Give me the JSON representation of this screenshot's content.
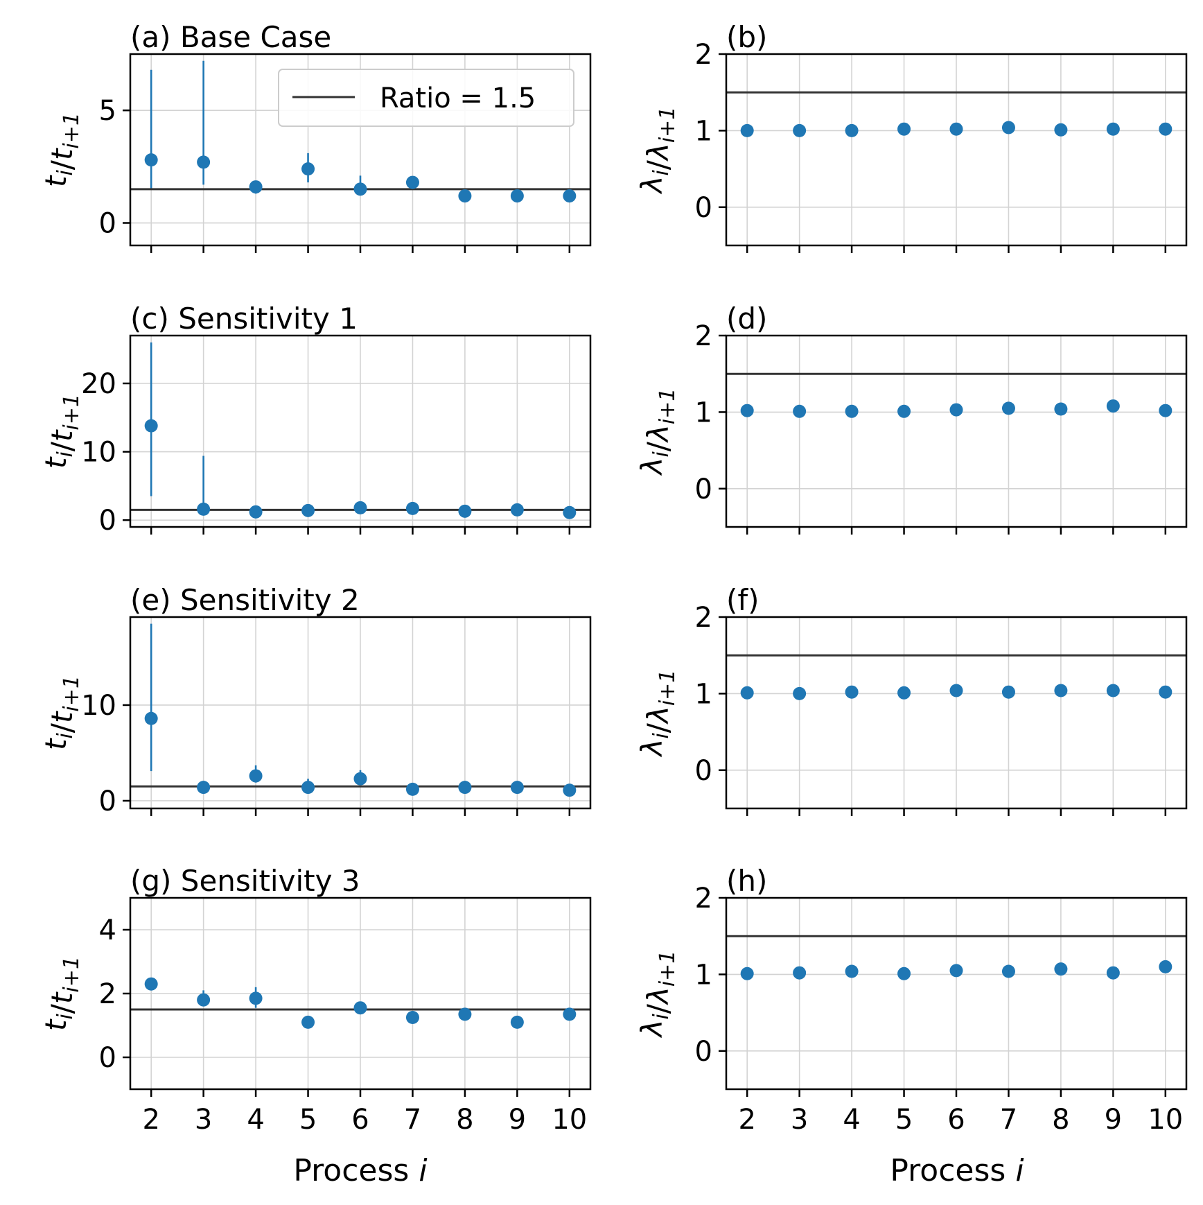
{
  "figure": {
    "xlabel": "Process",
    "xlabel_var": "i",
    "legend_label": "Ratio = 1.5",
    "reference_ratio": 1.5,
    "marker_color": "#1f77b4",
    "line_color": "#333333",
    "grid_color": "#d3d3d3"
  },
  "chart_data": [
    {
      "panel": "a",
      "title": "(a) Base Case",
      "type": "scatter",
      "column": "left",
      "row": 0,
      "ylabel": "t_i/t_{i+1}",
      "ylim": [
        -1,
        7.5
      ],
      "yticks": [
        0,
        5
      ],
      "x": [
        2,
        3,
        4,
        5,
        6,
        7,
        8,
        9,
        10
      ],
      "y": [
        2.8,
        2.7,
        1.6,
        2.4,
        1.5,
        1.8,
        1.2,
        1.2,
        1.2
      ],
      "err_low": [
        1.5,
        1.7,
        1.3,
        1.8,
        1.3,
        1.7,
        1.2,
        1.2,
        1.2
      ],
      "err_high": [
        6.8,
        7.2,
        1.7,
        3.1,
        2.1,
        1.8,
        1.2,
        1.2,
        1.2
      ],
      "hline": 1.5,
      "legend": "upper right",
      "grid": true
    },
    {
      "panel": "b",
      "title": "(b)",
      "type": "scatter",
      "column": "right",
      "row": 0,
      "ylabel": "λ_i/λ_{i+1}",
      "ylim": [
        -0.5,
        2
      ],
      "yticks": [
        0,
        1,
        2
      ],
      "x": [
        2,
        3,
        4,
        5,
        6,
        7,
        8,
        9,
        10
      ],
      "y": [
        1.0,
        1.0,
        1.0,
        1.02,
        1.02,
        1.04,
        1.01,
        1.02,
        1.02
      ],
      "hline": 1.5,
      "grid": true
    },
    {
      "panel": "c",
      "title": "(c) Sensitivity 1",
      "type": "scatter",
      "column": "left",
      "row": 1,
      "ylabel": "t_i/t_{i+1}",
      "ylim": [
        -1,
        27
      ],
      "yticks": [
        0,
        10,
        20
      ],
      "x": [
        2,
        3,
        4,
        5,
        6,
        7,
        8,
        9,
        10
      ],
      "y": [
        13.8,
        1.6,
        1.2,
        1.4,
        1.8,
        1.7,
        1.3,
        1.5,
        1.1
      ],
      "err_low": [
        3.5,
        1.3,
        1.0,
        1.2,
        1.5,
        1.5,
        1.1,
        1.3,
        1.0
      ],
      "err_high": [
        26.0,
        9.4,
        1.4,
        1.6,
        2.1,
        1.9,
        1.5,
        1.7,
        1.2
      ],
      "hline": 1.5,
      "grid": true
    },
    {
      "panel": "d",
      "title": "(d)",
      "type": "scatter",
      "column": "right",
      "row": 1,
      "ylabel": "λ_i/λ_{i+1}",
      "ylim": [
        -0.5,
        2
      ],
      "yticks": [
        0,
        1,
        2
      ],
      "x": [
        2,
        3,
        4,
        5,
        6,
        7,
        8,
        9,
        10
      ],
      "y": [
        1.02,
        1.01,
        1.01,
        1.01,
        1.03,
        1.05,
        1.04,
        1.08,
        1.02
      ],
      "hline": 1.5,
      "grid": true
    },
    {
      "panel": "e",
      "title": "(e) Sensitivity 2",
      "type": "scatter",
      "column": "left",
      "row": 2,
      "ylabel": "t_i/t_{i+1}",
      "ylim": [
        -0.8,
        19.2
      ],
      "yticks": [
        0,
        10
      ],
      "x": [
        2,
        3,
        4,
        5,
        6,
        7,
        8,
        9,
        10
      ],
      "y": [
        8.6,
        1.4,
        2.6,
        1.4,
        2.3,
        1.2,
        1.4,
        1.4,
        1.1
      ],
      "err_low": [
        3.1,
        1.2,
        1.9,
        1.0,
        1.7,
        1.0,
        1.2,
        1.2,
        0.9
      ],
      "err_high": [
        18.5,
        1.6,
        3.7,
        2.3,
        3.2,
        1.4,
        1.6,
        1.6,
        1.3
      ],
      "hline": 1.5,
      "grid": true
    },
    {
      "panel": "f",
      "title": "(f)",
      "type": "scatter",
      "column": "right",
      "row": 2,
      "ylabel": "λ_i/λ_{i+1}",
      "ylim": [
        -0.5,
        2
      ],
      "yticks": [
        0,
        1,
        2
      ],
      "x": [
        2,
        3,
        4,
        5,
        6,
        7,
        8,
        9,
        10
      ],
      "y": [
        1.01,
        1.0,
        1.02,
        1.01,
        1.04,
        1.02,
        1.04,
        1.04,
        1.02
      ],
      "hline": 1.5,
      "grid": true
    },
    {
      "panel": "g",
      "title": "(g) Sensitivity 3",
      "type": "scatter",
      "column": "left",
      "row": 3,
      "ylabel": "t_i/t_{i+1}",
      "ylim": [
        -1,
        5
      ],
      "yticks": [
        0,
        2,
        4
      ],
      "x": [
        2,
        3,
        4,
        5,
        6,
        7,
        8,
        9,
        10
      ],
      "y": [
        2.3,
        1.8,
        1.85,
        1.1,
        1.55,
        1.25,
        1.35,
        1.1,
        1.35
      ],
      "err_low": [
        2.2,
        1.6,
        1.55,
        1.0,
        1.45,
        1.15,
        1.25,
        1.0,
        1.25
      ],
      "err_high": [
        2.4,
        2.1,
        2.2,
        1.2,
        1.65,
        1.35,
        1.45,
        1.2,
        1.45
      ],
      "hline": 1.5,
      "grid": true
    },
    {
      "panel": "h",
      "title": "(h)",
      "type": "scatter",
      "column": "right",
      "row": 3,
      "ylabel": "λ_i/λ_{i+1}",
      "ylim": [
        -0.5,
        2
      ],
      "yticks": [
        0,
        1,
        2
      ],
      "x": [
        2,
        3,
        4,
        5,
        6,
        7,
        8,
        9,
        10
      ],
      "y": [
        1.01,
        1.02,
        1.04,
        1.01,
        1.05,
        1.04,
        1.07,
        1.02,
        1.1
      ],
      "hline": 1.5,
      "grid": true
    }
  ]
}
